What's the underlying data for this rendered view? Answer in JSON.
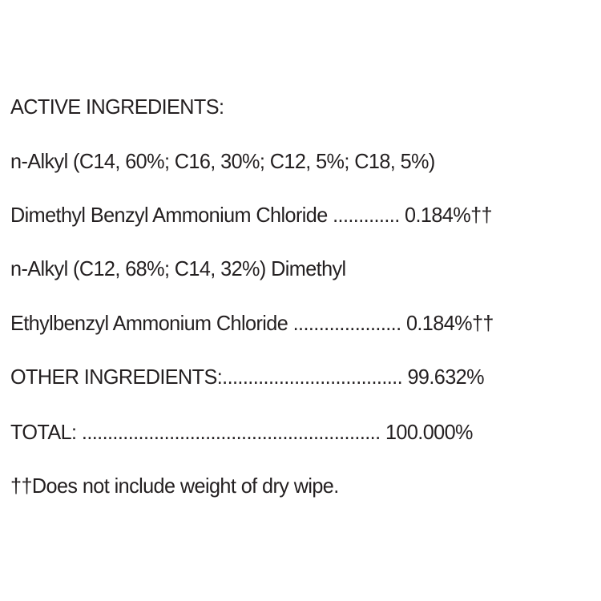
{
  "label": {
    "lines": [
      "ACTIVE INGREDIENTS:",
      "n-Alkyl (C14, 60%; C16, 30%; C12, 5%; C18, 5%)",
      "Dimethyl Benzyl Ammonium Chloride ............. 0.184%††",
      "n-Alkyl (C12, 68%; C14, 32%) Dimethyl",
      "Ethylbenzyl Ammonium Chloride ..................... 0.184%††",
      "OTHER INGREDIENTS:................................... 99.632%",
      "TOTAL: .......................................................... 100.000%",
      "††Does not include weight of dry wipe."
    ]
  }
}
